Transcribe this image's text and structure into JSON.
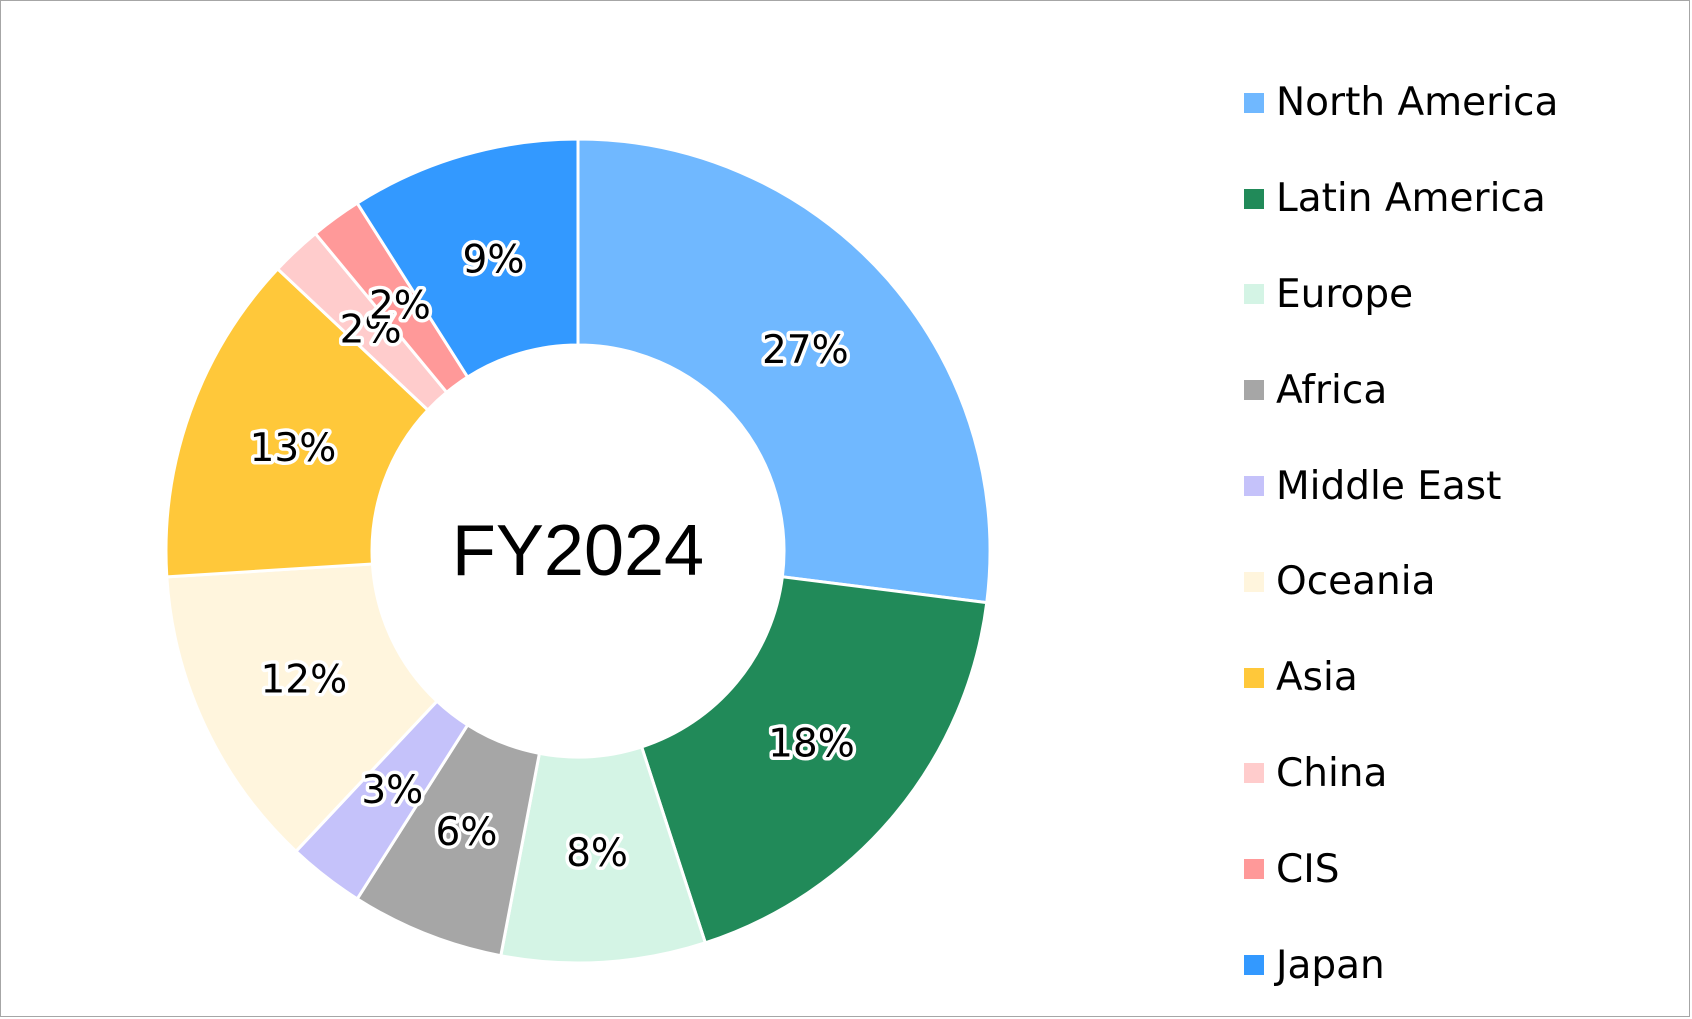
{
  "chart_data": {
    "type": "pie",
    "style": "donut",
    "center_label": "FY2024",
    "legend_position": "right",
    "categories": [
      "North America",
      "Latin America",
      "Europe",
      "Africa",
      "Middle East",
      "Oceania",
      "Asia",
      "China",
      "CIS",
      "Japan"
    ],
    "values": [
      27,
      18,
      8,
      6,
      3,
      12,
      13,
      2,
      2,
      9
    ],
    "data_labels": [
      "27%",
      "18%",
      "8%",
      "6%",
      "3%",
      "12%",
      "13%",
      "2%",
      "2%",
      "9%"
    ],
    "colors": [
      "#70b8ff",
      "#218a59",
      "#d4f4e5",
      "#a6a6a6",
      "#c5c2fa",
      "#fff5dd",
      "#ffc83a",
      "#ffcccc",
      "#ff9999",
      "#3399ff"
    ]
  }
}
